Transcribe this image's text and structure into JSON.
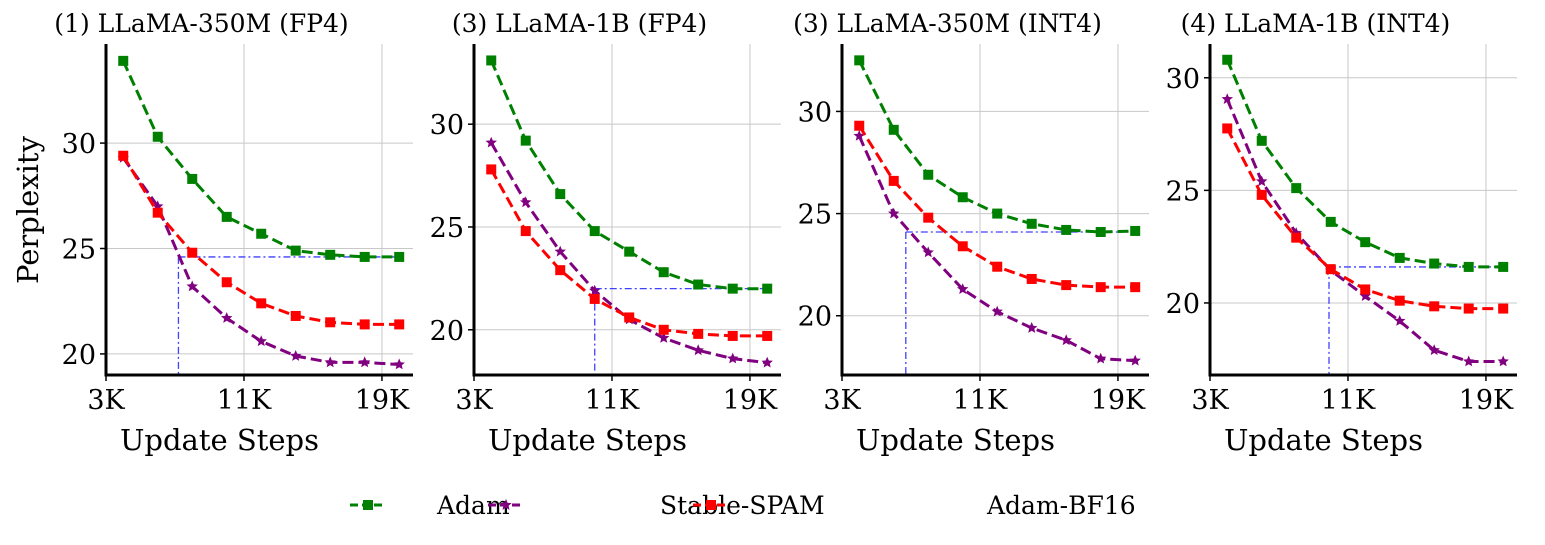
{
  "chart_data": {
    "type": "line",
    "grid": true,
    "legend": {
      "placement": "bottom-center",
      "entries": [
        {
          "name": "Adam",
          "color": "#008000",
          "marker": "square",
          "linestyle": "dashed"
        },
        {
          "name": "Stable-SPAM",
          "color": "#800080",
          "marker": "star",
          "linestyle": "dashed"
        },
        {
          "name": "Adam-BF16",
          "color": "#ff0000",
          "marker": "square",
          "linestyle": "dashed"
        }
      ]
    },
    "reference_line_color": "#4040ff",
    "ylabel": "Perplexity",
    "xlabel": "Update Steps",
    "x": [
      4,
      6,
      8,
      10,
      12,
      14,
      16,
      18,
      20
    ],
    "x_unit": "K",
    "xticks": [
      3,
      11,
      19
    ],
    "xtick_labels": [
      "3K",
      "11K",
      "19K"
    ],
    "xlim": [
      3,
      20.8
    ],
    "panels": [
      {
        "title": "(1) LLaMA-350M (FP4)",
        "ylim": [
          19.0,
          34.7
        ],
        "yticks": [
          20,
          25,
          30
        ],
        "series": [
          {
            "name": "Adam",
            "values": [
              33.9,
              30.3,
              28.3,
              26.5,
              25.7,
              24.9,
              24.7,
              24.6,
              24.6
            ]
          },
          {
            "name": "Stable-SPAM",
            "values": [
              29.3,
              27.0,
              23.2,
              21.7,
              20.6,
              19.9,
              19.6,
              19.6,
              19.5
            ]
          },
          {
            "name": "Adam-BF16",
            "values": [
              29.4,
              26.7,
              24.8,
              23.4,
              22.4,
              21.8,
              21.5,
              21.4,
              21.4
            ]
          }
        ],
        "reference": {
          "x": 7.2,
          "y": 24.6
        }
      },
      {
        "title": "(3) LLaMA-1B (FP4)",
        "ylim": [
          17.8,
          33.9
        ],
        "yticks": [
          20,
          25,
          30
        ],
        "series": [
          {
            "name": "Adam",
            "values": [
              33.1,
              29.2,
              26.6,
              24.8,
              23.8,
              22.8,
              22.2,
              22.0,
              22.0
            ]
          },
          {
            "name": "Stable-SPAM",
            "values": [
              29.1,
              26.2,
              23.8,
              21.9,
              20.5,
              19.6,
              19.0,
              18.6,
              18.4
            ]
          },
          {
            "name": "Adam-BF16",
            "values": [
              27.8,
              24.8,
              22.9,
              21.5,
              20.6,
              20.0,
              19.8,
              19.7,
              19.7
            ]
          }
        ],
        "reference": {
          "x": 10.0,
          "y": 22.0
        }
      },
      {
        "title": "(3) LLaMA-350M (INT4)",
        "ylim": [
          17.1,
          33.3
        ],
        "yticks": [
          20,
          25,
          30
        ],
        "series": [
          {
            "name": "Adam",
            "values": [
              32.5,
              29.1,
              26.9,
              25.8,
              25.0,
              24.5,
              24.2,
              24.1,
              24.15
            ]
          },
          {
            "name": "Stable-SPAM",
            "values": [
              28.8,
              25.0,
              23.1,
              21.3,
              20.2,
              19.4,
              18.8,
              17.9,
              17.8
            ]
          },
          {
            "name": "Adam-BF16",
            "values": [
              29.3,
              26.6,
              24.8,
              23.4,
              22.4,
              21.8,
              21.5,
              21.4,
              21.4
            ]
          }
        ],
        "reference": {
          "x": 6.7,
          "y": 24.1
        }
      },
      {
        "title": "(4) LLaMA-1B (INT4)",
        "ylim": [
          16.8,
          31.5
        ],
        "yticks": [
          20,
          25,
          30
        ],
        "series": [
          {
            "name": "Adam",
            "values": [
              30.8,
              27.2,
              25.1,
              23.6,
              22.7,
              22.0,
              21.75,
              21.6,
              21.6
            ]
          },
          {
            "name": "Stable-SPAM",
            "values": [
              29.05,
              25.4,
              23.1,
              21.45,
              20.3,
              19.2,
              17.9,
              17.4,
              17.4
            ]
          },
          {
            "name": "Adam-BF16",
            "values": [
              27.75,
              24.8,
              22.9,
              21.5,
              20.6,
              20.1,
              19.85,
              19.75,
              19.75
            ]
          }
        ],
        "reference": {
          "x": 9.9,
          "y": 21.6
        }
      }
    ]
  }
}
